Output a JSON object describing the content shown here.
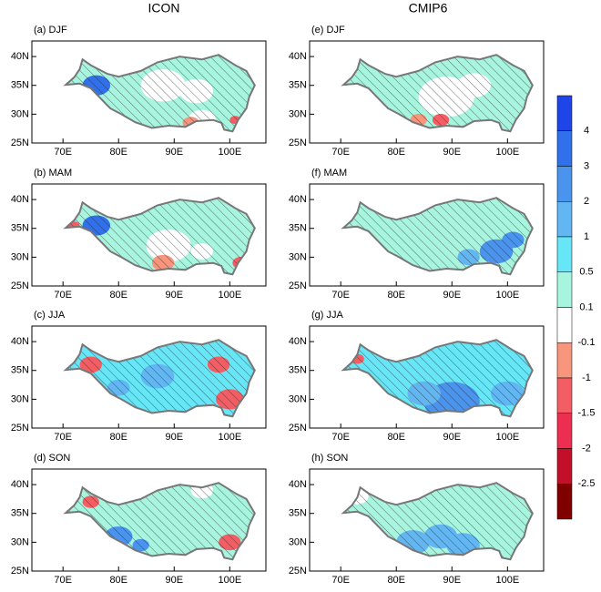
{
  "column_titles": [
    "ICON",
    "CMIP6"
  ],
  "panels": [
    {
      "label": "(a) DJF"
    },
    {
      "label": "(b) MAM"
    },
    {
      "label": "(c) JJA"
    },
    {
      "label": "(d) SON"
    },
    {
      "label": "(e) DJF"
    },
    {
      "label": "(f) MAM"
    },
    {
      "label": "(g) JJA"
    },
    {
      "label": "(h) SON"
    }
  ],
  "x_ticks": [
    "70E",
    "80E",
    "90E",
    "100E"
  ],
  "y_ticks": [
    "25N",
    "30N",
    "35N",
    "40N"
  ],
  "colorbar": {
    "labels": [
      "4",
      "3",
      "2",
      "1",
      "0.5",
      "0.1",
      "-0.1",
      "-1",
      "-1.5",
      "-2",
      "-2.5"
    ],
    "colors": [
      "#1f45e8",
      "#3070ea",
      "#4a94ee",
      "#62b6f2",
      "#66e6f6",
      "#a8f5df",
      "#ffffff",
      "#f7967c",
      "#f25e64",
      "#ec2f50",
      "#c2102a",
      "#800000"
    ]
  }
}
